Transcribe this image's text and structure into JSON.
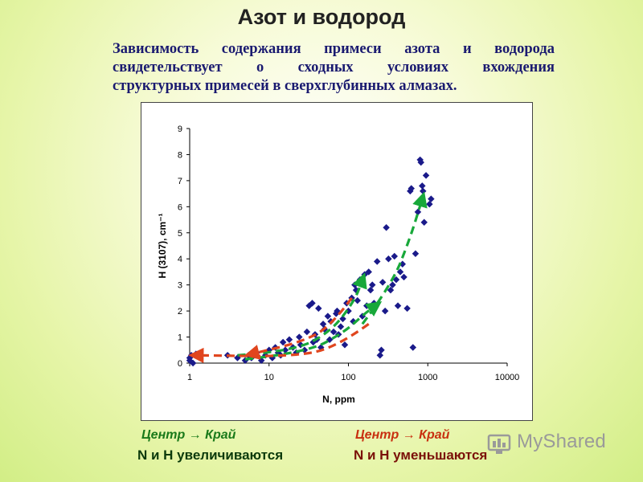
{
  "slide": {
    "title": "Азот и водород",
    "description_lines": [
      "Зависимость содержания примеси азота и водорода",
      "свидетельствует о сходных условиях вхождения",
      "структурных примесей в сверхглубинных алмазах."
    ]
  },
  "legend": {
    "left_caption": "Центр → Край",
    "left_text": "N и H увеличиваются",
    "right_caption": "Центр → Край",
    "right_text": "N и H уменьшаются"
  },
  "watermark": "MyShared",
  "colors": {
    "points": "#1a1a8a",
    "green_arrow": "#18a83a",
    "red_arrow": "#e0451e",
    "title": "#222222",
    "description": "#1a1a70"
  },
  "chart_data": {
    "type": "scatter",
    "xlabel": "N, ppm",
    "ylabel": "H (3107), cm⁻¹",
    "xscale": "log",
    "xlim": [
      1,
      10000
    ],
    "ylim": [
      0,
      9
    ],
    "xticks": [
      "1",
      "10",
      "100",
      "1000",
      "10000"
    ],
    "yticks": [
      "0",
      "1",
      "2",
      "3",
      "4",
      "5",
      "6",
      "7",
      "8",
      "9"
    ],
    "grid": false,
    "series": [
      {
        "points": [
          [
            1,
            0.2
          ],
          [
            1,
            0.1
          ],
          [
            1.05,
            0.3
          ],
          [
            1.2,
            0.35
          ],
          [
            1.1,
            0.0
          ],
          [
            3,
            0.3
          ],
          [
            4,
            0.2
          ],
          [
            5,
            0.1
          ],
          [
            5.5,
            0.3
          ],
          [
            6,
            0.2
          ],
          [
            7,
            0.4
          ],
          [
            8,
            0.1
          ],
          [
            9,
            0.3
          ],
          [
            10,
            0.5
          ],
          [
            11,
            0.2
          ],
          [
            12,
            0.6
          ],
          [
            13,
            0.4
          ],
          [
            14,
            0.3
          ],
          [
            15,
            0.8
          ],
          [
            16,
            0.5
          ],
          [
            18,
            0.9
          ],
          [
            20,
            0.6
          ],
          [
            22,
            0.4
          ],
          [
            24,
            1.0
          ],
          [
            25,
            0.7
          ],
          [
            28,
            0.5
          ],
          [
            30,
            1.2
          ],
          [
            32,
            2.2
          ],
          [
            35,
            2.3
          ],
          [
            36,
            0.8
          ],
          [
            38,
            1.1
          ],
          [
            40,
            0.9
          ],
          [
            42,
            2.1
          ],
          [
            45,
            0.6
          ],
          [
            48,
            1.5
          ],
          [
            50,
            1.3
          ],
          [
            55,
            1.8
          ],
          [
            58,
            0.9
          ],
          [
            60,
            1.6
          ],
          [
            65,
            1.2
          ],
          [
            70,
            1.9
          ],
          [
            72,
            2.0
          ],
          [
            75,
            1.1
          ],
          [
            80,
            1.4
          ],
          [
            85,
            1.7
          ],
          [
            90,
            0.7
          ],
          [
            95,
            2.3
          ],
          [
            100,
            2.0
          ],
          [
            110,
            2.5
          ],
          [
            115,
            1.6
          ],
          [
            120,
            3.0
          ],
          [
            125,
            2.8
          ],
          [
            130,
            2.4
          ],
          [
            140,
            3.2
          ],
          [
            150,
            1.8
          ],
          [
            160,
            3.4
          ],
          [
            170,
            2.2
          ],
          [
            180,
            3.5
          ],
          [
            190,
            2.8
          ],
          [
            200,
            3.0
          ],
          [
            210,
            2.3
          ],
          [
            230,
            3.9
          ],
          [
            250,
            0.3
          ],
          [
            260,
            0.5
          ],
          [
            270,
            3.1
          ],
          [
            290,
            2.0
          ],
          [
            300,
            5.2
          ],
          [
            320,
            4.0
          ],
          [
            340,
            2.8
          ],
          [
            360,
            3.0
          ],
          [
            380,
            4.1
          ],
          [
            400,
            3.2
          ],
          [
            420,
            2.2
          ],
          [
            450,
            3.5
          ],
          [
            480,
            3.8
          ],
          [
            500,
            3.3
          ],
          [
            550,
            2.1
          ],
          [
            600,
            6.6
          ],
          [
            620,
            6.7
          ],
          [
            650,
            0.6
          ],
          [
            700,
            4.2
          ],
          [
            750,
            5.8
          ],
          [
            800,
            7.8
          ],
          [
            820,
            7.7
          ],
          [
            850,
            6.8
          ],
          [
            870,
            6.6
          ],
          [
            900,
            5.4
          ],
          [
            950,
            7.2
          ],
          [
            1050,
            6.1
          ],
          [
            1100,
            6.3
          ]
        ]
      }
    ],
    "arrows": [
      {
        "color": "green",
        "path": [
          [
            4,
            0.3
          ],
          [
            20,
            0.45
          ],
          [
            60,
            1.2
          ],
          [
            120,
            2.4
          ],
          [
            150,
            3.2
          ]
        ]
      },
      {
        "color": "green",
        "path": [
          [
            5,
            0.15
          ],
          [
            30,
            0.4
          ],
          [
            90,
            1.2
          ],
          [
            160,
            1.9
          ],
          [
            220,
            2.2
          ]
        ]
      },
      {
        "color": "green",
        "path": [
          [
            150,
            1.5
          ],
          [
            350,
            3.0
          ],
          [
            600,
            4.8
          ],
          [
            850,
            6.3
          ]
        ]
      },
      {
        "color": "red",
        "path": [
          [
            110,
            2.5
          ],
          [
            60,
            1.4
          ],
          [
            25,
            0.8
          ],
          [
            6,
            0.35
          ]
        ]
      },
      {
        "color": "red",
        "path": [
          [
            180,
            1.5
          ],
          [
            70,
            0.6
          ],
          [
            20,
            0.25
          ],
          [
            1.2,
            0.3
          ]
        ]
      }
    ]
  }
}
